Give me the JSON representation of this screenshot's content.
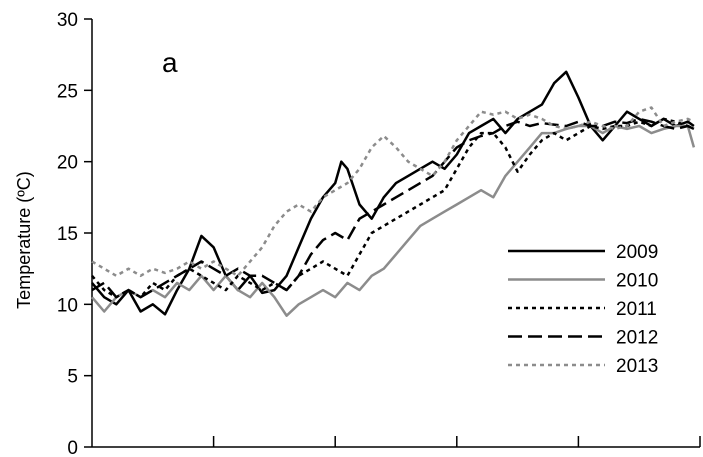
{
  "chart_data": {
    "type": "line",
    "panel_label": "a",
    "ylabel": "Temperature (ºC)",
    "xlabel": "",
    "ylim": [
      0,
      30
    ],
    "yticks": [
      0,
      5,
      10,
      15,
      20,
      25,
      30
    ],
    "xlim": [
      0,
      100
    ],
    "xticks": [
      0,
      20,
      40,
      60,
      80,
      100
    ],
    "grid": false,
    "legend_position": "right",
    "series": [
      {
        "name": "2009",
        "color": "#000000",
        "dash": "solid",
        "points": [
          [
            0,
            11.5
          ],
          [
            2,
            10.5
          ],
          [
            4,
            10
          ],
          [
            6,
            11
          ],
          [
            8,
            9.5
          ],
          [
            10,
            10
          ],
          [
            12,
            9.3
          ],
          [
            14,
            11
          ],
          [
            16,
            12.5
          ],
          [
            18,
            14.8
          ],
          [
            20,
            14
          ],
          [
            22,
            12
          ],
          [
            24,
            11
          ],
          [
            26,
            12
          ],
          [
            28,
            10.8
          ],
          [
            30,
            11
          ],
          [
            32,
            12
          ],
          [
            34,
            14
          ],
          [
            36,
            16
          ],
          [
            38,
            17.5
          ],
          [
            40,
            18.5
          ],
          [
            41,
            20
          ],
          [
            42,
            19.5
          ],
          [
            44,
            17
          ],
          [
            46,
            16
          ],
          [
            48,
            17.5
          ],
          [
            50,
            18.5
          ],
          [
            52,
            19
          ],
          [
            54,
            19.5
          ],
          [
            56,
            20
          ],
          [
            58,
            19.5
          ],
          [
            60,
            20.5
          ],
          [
            62,
            22
          ],
          [
            64,
            22.5
          ],
          [
            66,
            23
          ],
          [
            68,
            22
          ],
          [
            70,
            23
          ],
          [
            72,
            23.5
          ],
          [
            74,
            24
          ],
          [
            76,
            25.5
          ],
          [
            78,
            26.3
          ],
          [
            80,
            24.5
          ],
          [
            82,
            22.5
          ],
          [
            84,
            21.5
          ],
          [
            86,
            22.5
          ],
          [
            88,
            23.5
          ],
          [
            90,
            23
          ],
          [
            92,
            22.5
          ],
          [
            94,
            23
          ],
          [
            96,
            22.5
          ],
          [
            98,
            22.8
          ],
          [
            99,
            22.5
          ]
        ]
      },
      {
        "name": "2010",
        "color": "#8c8c8c",
        "dash": "solid",
        "points": [
          [
            0,
            10.5
          ],
          [
            2,
            9.5
          ],
          [
            4,
            10.5
          ],
          [
            6,
            11
          ],
          [
            8,
            10.5
          ],
          [
            10,
            11
          ],
          [
            12,
            10.5
          ],
          [
            14,
            11.5
          ],
          [
            16,
            11
          ],
          [
            18,
            12
          ],
          [
            20,
            11
          ],
          [
            22,
            12
          ],
          [
            24,
            11
          ],
          [
            26,
            10.5
          ],
          [
            28,
            11.5
          ],
          [
            30,
            10.5
          ],
          [
            32,
            9.2
          ],
          [
            34,
            10
          ],
          [
            36,
            10.5
          ],
          [
            38,
            11
          ],
          [
            40,
            10.5
          ],
          [
            42,
            11.5
          ],
          [
            44,
            11
          ],
          [
            46,
            12
          ],
          [
            48,
            12.5
          ],
          [
            50,
            13.5
          ],
          [
            52,
            14.5
          ],
          [
            54,
            15.5
          ],
          [
            56,
            16
          ],
          [
            58,
            16.5
          ],
          [
            60,
            17
          ],
          [
            62,
            17.5
          ],
          [
            64,
            18
          ],
          [
            66,
            17.5
          ],
          [
            68,
            19
          ],
          [
            70,
            20
          ],
          [
            72,
            21
          ],
          [
            74,
            22
          ],
          [
            76,
            22
          ],
          [
            78,
            22.3
          ],
          [
            80,
            22.5
          ],
          [
            82,
            22.5
          ],
          [
            84,
            22
          ],
          [
            86,
            22.5
          ],
          [
            88,
            22.3
          ],
          [
            90,
            22.5
          ],
          [
            92,
            22
          ],
          [
            94,
            22.3
          ],
          [
            96,
            22.5
          ],
          [
            98,
            22.5
          ],
          [
            99,
            21
          ]
        ]
      },
      {
        "name": "2011",
        "color": "#000000",
        "dash": "4,4",
        "points": [
          [
            0,
            12
          ],
          [
            2,
            11
          ],
          [
            4,
            10.5
          ],
          [
            6,
            11
          ],
          [
            8,
            10.5
          ],
          [
            10,
            11.5
          ],
          [
            12,
            11
          ],
          [
            14,
            12
          ],
          [
            16,
            12.5
          ],
          [
            18,
            12
          ],
          [
            20,
            11.5
          ],
          [
            22,
            11
          ],
          [
            24,
            12
          ],
          [
            26,
            11.5
          ],
          [
            28,
            11
          ],
          [
            30,
            11.5
          ],
          [
            32,
            11
          ],
          [
            34,
            12
          ],
          [
            36,
            12.5
          ],
          [
            38,
            13
          ],
          [
            40,
            12.5
          ],
          [
            42,
            12
          ],
          [
            44,
            13.5
          ],
          [
            46,
            15
          ],
          [
            48,
            15.5
          ],
          [
            50,
            16
          ],
          [
            52,
            16.5
          ],
          [
            54,
            17
          ],
          [
            56,
            17.5
          ],
          [
            58,
            18
          ],
          [
            60,
            19.5
          ],
          [
            62,
            21
          ],
          [
            64,
            22
          ],
          [
            66,
            22
          ],
          [
            68,
            21
          ],
          [
            70,
            19.3
          ],
          [
            72,
            20.5
          ],
          [
            74,
            21.5
          ],
          [
            76,
            22
          ],
          [
            78,
            21.5
          ],
          [
            80,
            22
          ],
          [
            82,
            22.5
          ],
          [
            84,
            22.3
          ],
          [
            86,
            22.5
          ],
          [
            88,
            22.5
          ],
          [
            90,
            22.8
          ],
          [
            92,
            22.5
          ],
          [
            94,
            23
          ],
          [
            96,
            22.8
          ],
          [
            98,
            22.5
          ],
          [
            99,
            22.3
          ]
        ]
      },
      {
        "name": "2012",
        "color": "#000000",
        "dash": "14,6",
        "points": [
          [
            0,
            11
          ],
          [
            2,
            11.5
          ],
          [
            4,
            10.5
          ],
          [
            6,
            11
          ],
          [
            8,
            10.5
          ],
          [
            10,
            11
          ],
          [
            12,
            11.5
          ],
          [
            14,
            12
          ],
          [
            16,
            12.5
          ],
          [
            18,
            13
          ],
          [
            20,
            12.5
          ],
          [
            22,
            12
          ],
          [
            24,
            12.5
          ],
          [
            26,
            12
          ],
          [
            28,
            12
          ],
          [
            30,
            11.5
          ],
          [
            32,
            11
          ],
          [
            34,
            12
          ],
          [
            36,
            13.5
          ],
          [
            38,
            14.5
          ],
          [
            40,
            15
          ],
          [
            42,
            14.5
          ],
          [
            44,
            16
          ],
          [
            46,
            16.5
          ],
          [
            48,
            17
          ],
          [
            50,
            17.5
          ],
          [
            52,
            18
          ],
          [
            54,
            18.5
          ],
          [
            56,
            19
          ],
          [
            58,
            20
          ],
          [
            60,
            21
          ],
          [
            62,
            21.5
          ],
          [
            64,
            21.8
          ],
          [
            66,
            22
          ],
          [
            68,
            22.5
          ],
          [
            70,
            22.8
          ],
          [
            72,
            22.5
          ],
          [
            74,
            22.7
          ],
          [
            76,
            22.6
          ],
          [
            78,
            22.5
          ],
          [
            80,
            22.8
          ],
          [
            82,
            22.5
          ],
          [
            84,
            22.5
          ],
          [
            86,
            22.8
          ],
          [
            88,
            22.7
          ],
          [
            90,
            23
          ],
          [
            92,
            22.8
          ],
          [
            94,
            22.5
          ],
          [
            96,
            22.3
          ],
          [
            98,
            22.5
          ],
          [
            99,
            22.3
          ]
        ]
      },
      {
        "name": "2013",
        "color": "#8c8c8c",
        "dash": "4,4",
        "points": [
          [
            0,
            13
          ],
          [
            2,
            12.5
          ],
          [
            4,
            12
          ],
          [
            6,
            12.5
          ],
          [
            8,
            12
          ],
          [
            10,
            12.5
          ],
          [
            12,
            12.2
          ],
          [
            14,
            12.5
          ],
          [
            16,
            13
          ],
          [
            18,
            12.5
          ],
          [
            20,
            13
          ],
          [
            22,
            12.5
          ],
          [
            24,
            12
          ],
          [
            26,
            13
          ],
          [
            28,
            14
          ],
          [
            30,
            15.5
          ],
          [
            32,
            16.5
          ],
          [
            34,
            17
          ],
          [
            36,
            16.5
          ],
          [
            38,
            17.5
          ],
          [
            40,
            18
          ],
          [
            42,
            18.5
          ],
          [
            44,
            19.5
          ],
          [
            46,
            21
          ],
          [
            48,
            21.8
          ],
          [
            50,
            21
          ],
          [
            52,
            20
          ],
          [
            54,
            19.5
          ],
          [
            56,
            19
          ],
          [
            58,
            20
          ],
          [
            60,
            21.5
          ],
          [
            62,
            22.5
          ],
          [
            64,
            23.5
          ],
          [
            66,
            23.3
          ],
          [
            68,
            23.5
          ],
          [
            70,
            23
          ],
          [
            72,
            23.3
          ],
          [
            74,
            23
          ],
          [
            76,
            22.5
          ],
          [
            78,
            22.3
          ],
          [
            80,
            22.5
          ],
          [
            82,
            22.8
          ],
          [
            84,
            22.5
          ],
          [
            86,
            22.3
          ],
          [
            88,
            22.5
          ],
          [
            90,
            23.5
          ],
          [
            92,
            23.8
          ],
          [
            94,
            22.5
          ],
          [
            96,
            22.8
          ],
          [
            98,
            23
          ],
          [
            99,
            22.8
          ]
        ]
      }
    ]
  }
}
